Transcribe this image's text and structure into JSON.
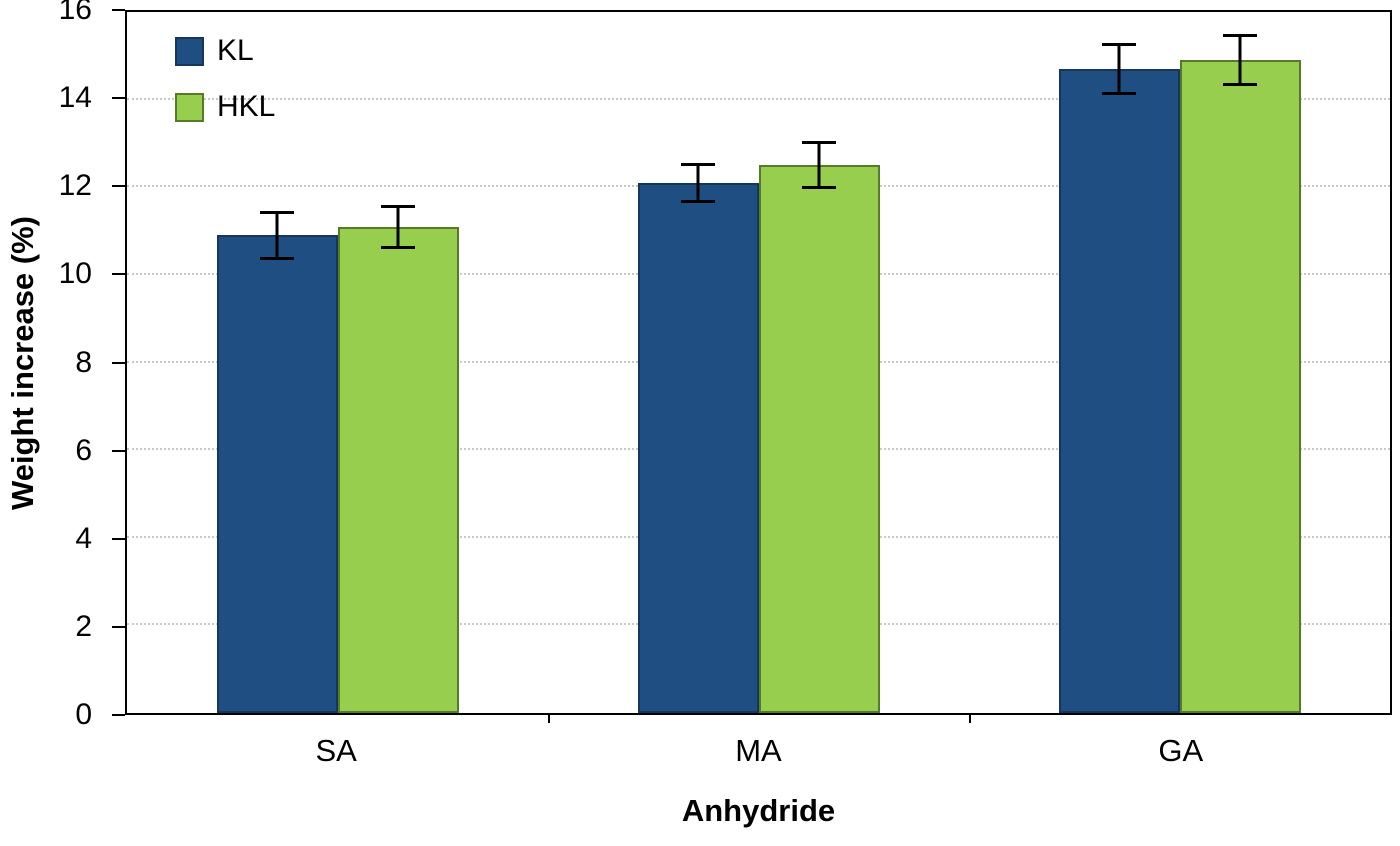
{
  "chart_data": {
    "type": "bar",
    "title": "",
    "xlabel": "Anhydride",
    "ylabel": "Weight increase (%)",
    "ylim": [
      0,
      16
    ],
    "yticks": [
      0,
      2,
      4,
      6,
      8,
      10,
      12,
      14,
      16
    ],
    "categories": [
      "SA",
      "MA",
      "GA"
    ],
    "series": [
      {
        "name": "KL",
        "color": "#1F4E82",
        "border_color": "#16365C",
        "values": [
          10.9,
          12.1,
          14.7
        ],
        "errors": [
          0.55,
          0.45,
          0.6
        ]
      },
      {
        "name": "HKL",
        "color": "#97CE4E",
        "border_color": "#567A28",
        "values": [
          11.1,
          12.5,
          14.9
        ],
        "errors": [
          0.5,
          0.55,
          0.6
        ]
      }
    ],
    "legend_position": "top-left",
    "grid": "dotted horizontal gridlines at each y tick",
    "error_bars": true,
    "plot_border_color": "#000000",
    "background_color": "#FFFFFF"
  }
}
